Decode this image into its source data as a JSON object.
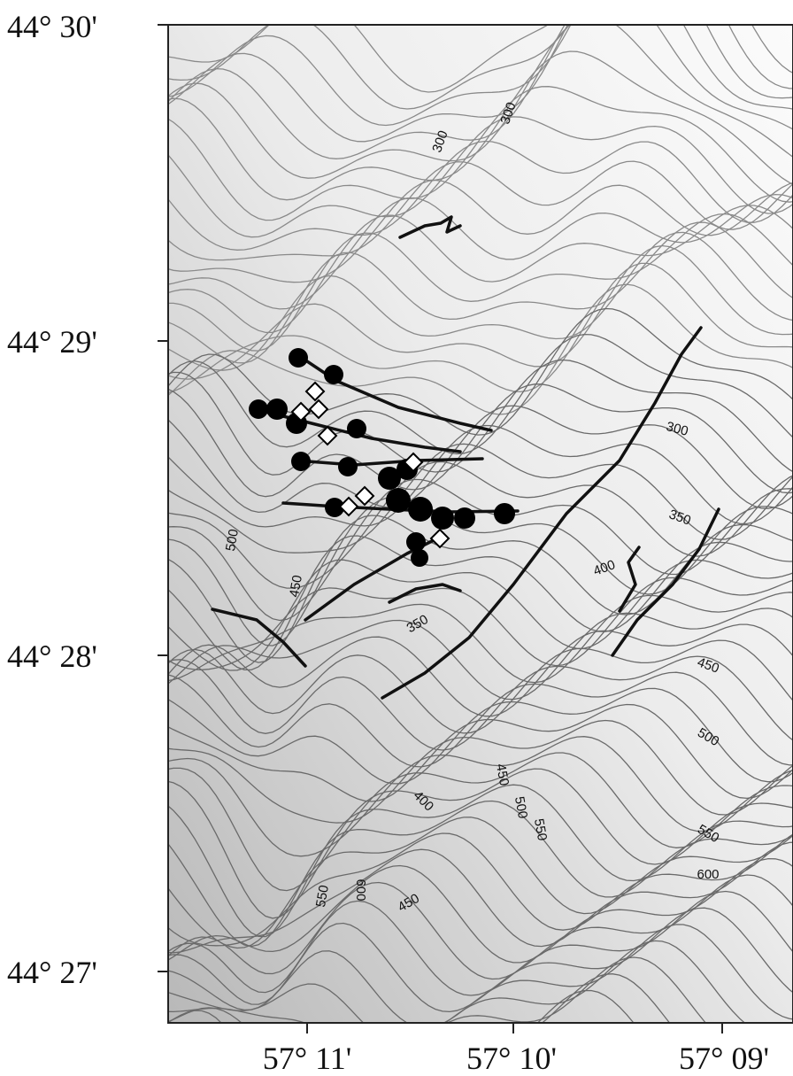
{
  "map": {
    "latitude_labels": [
      "44° 30'",
      "44° 29'",
      "44° 28'",
      "44° 27'"
    ],
    "longitude_labels": [
      "57° 11'",
      "57° 10'",
      "57° 09'"
    ],
    "contour_labels": [
      "300",
      "300",
      "300",
      "350",
      "400",
      "500",
      "450",
      "350",
      "450",
      "500",
      "400",
      "450",
      "500",
      "550",
      "550",
      "600",
      "550",
      "600",
      "450"
    ]
  }
}
